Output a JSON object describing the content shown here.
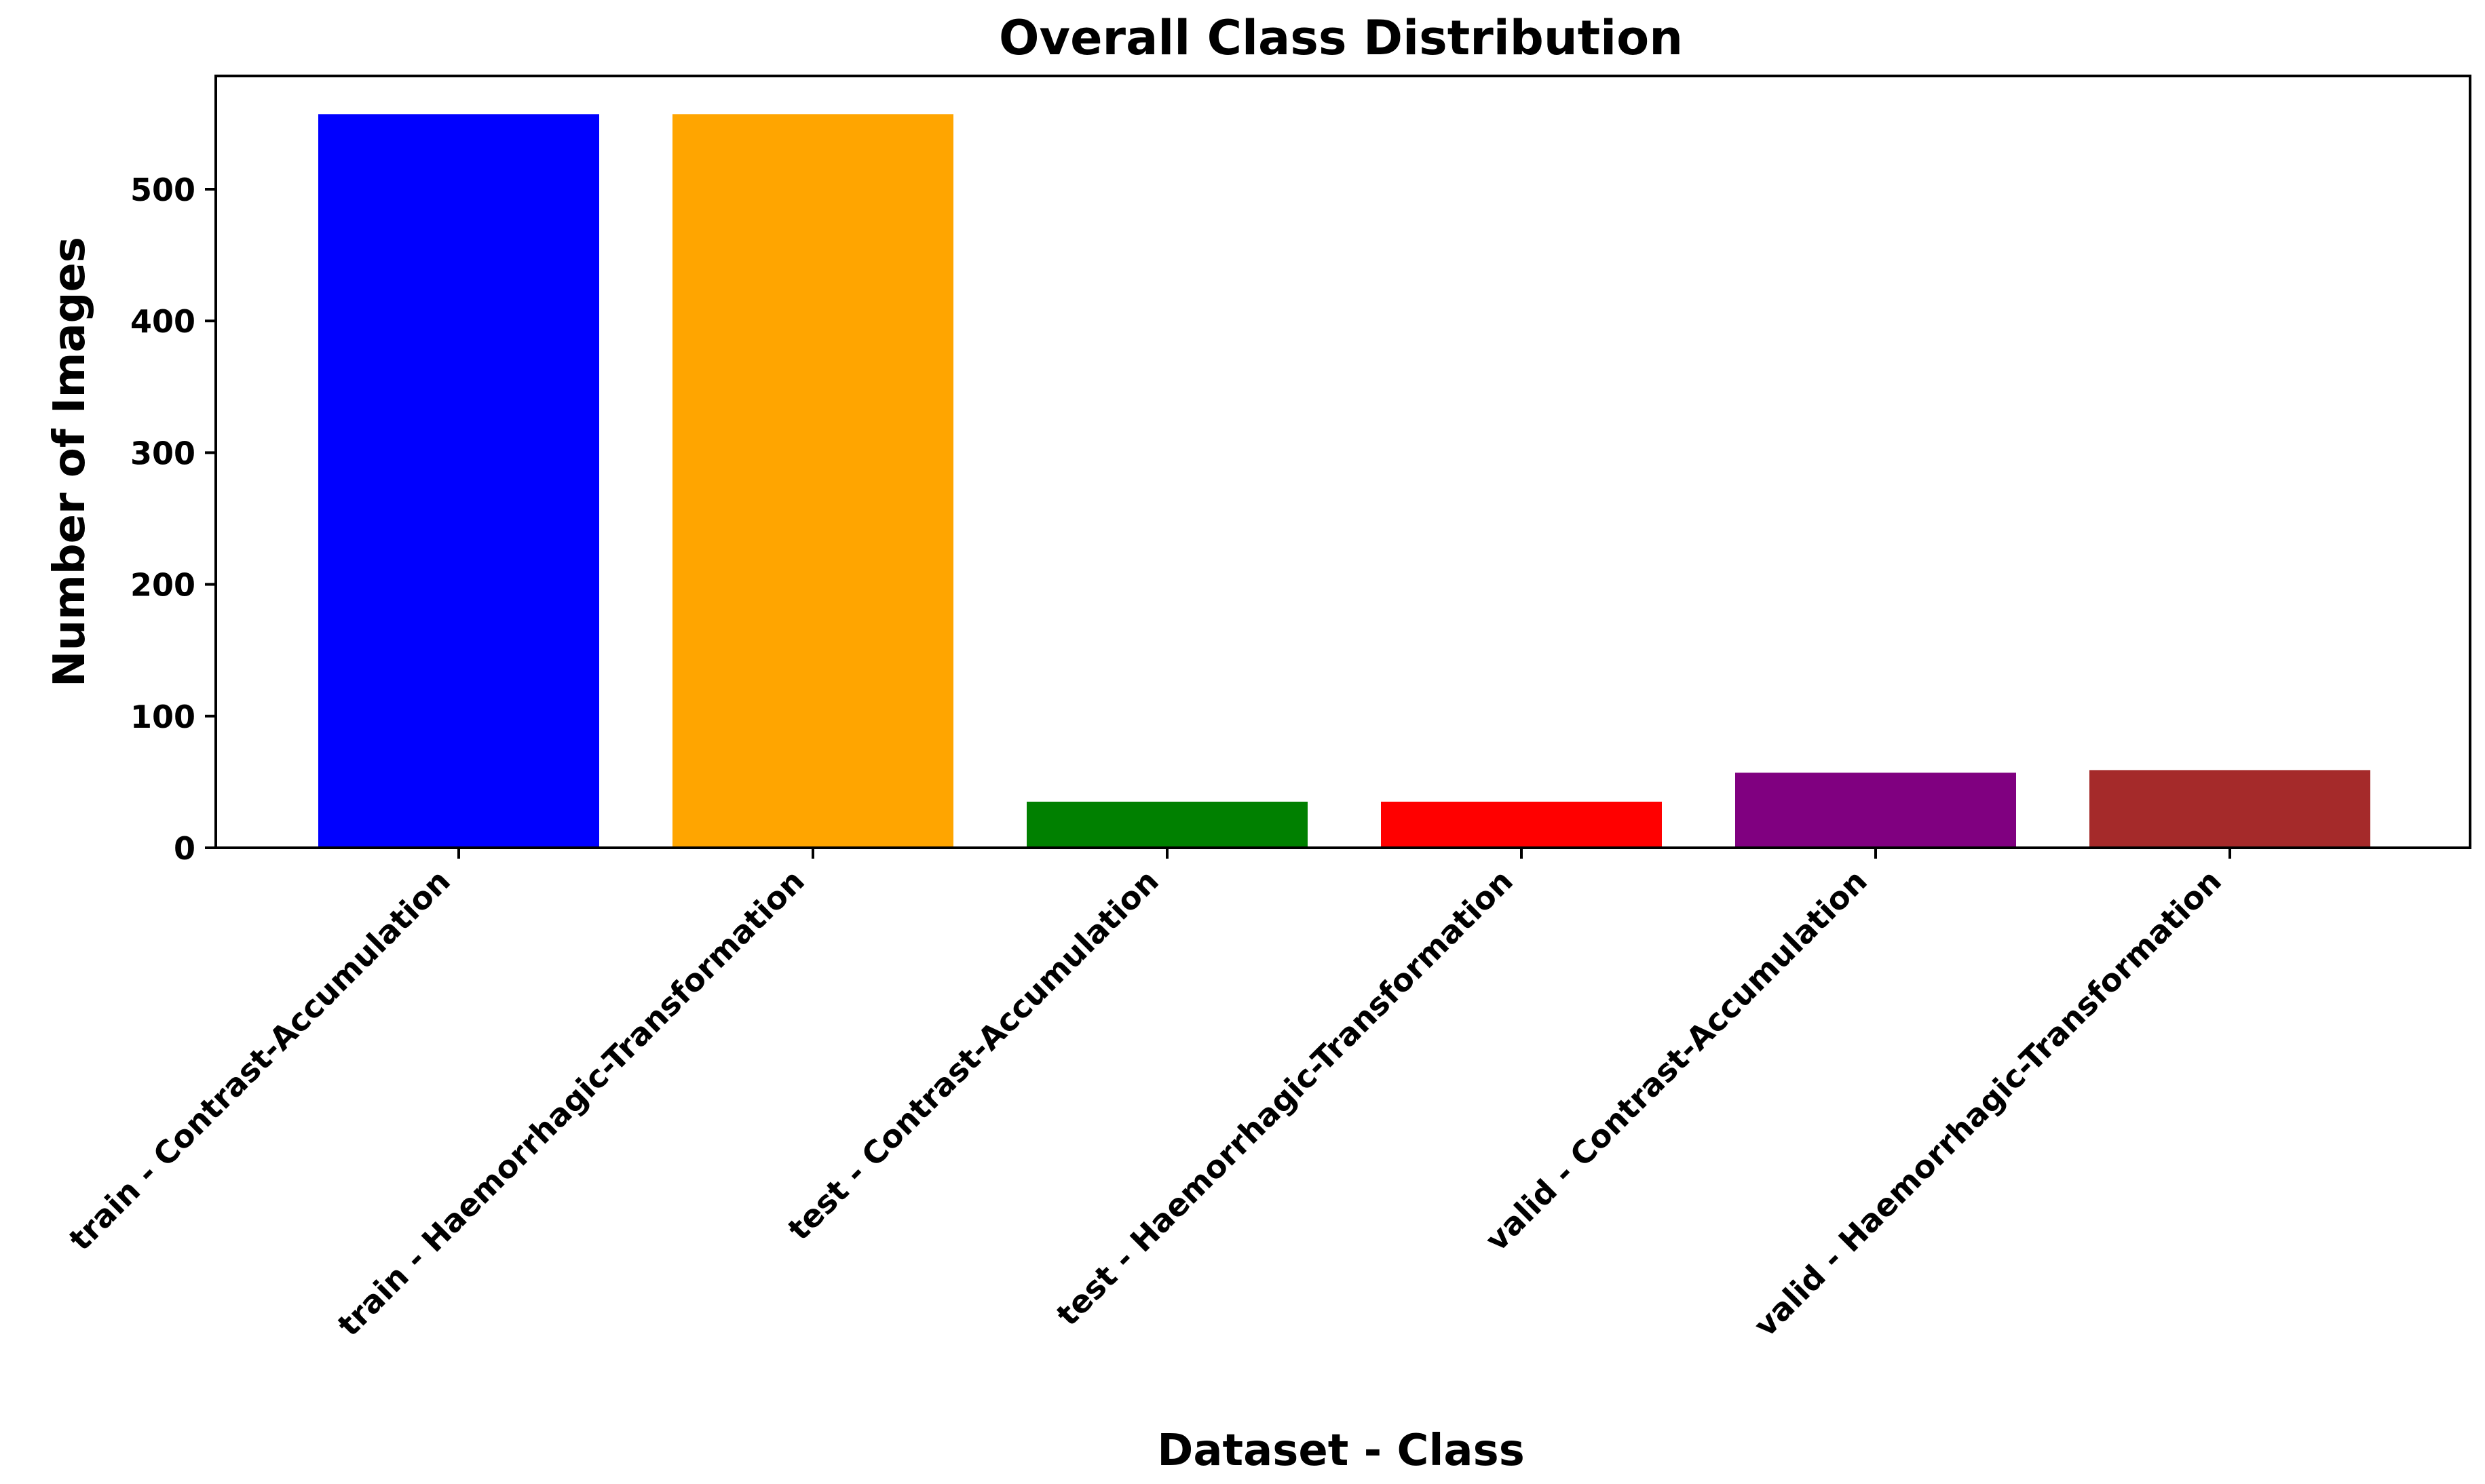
{
  "chart_data": {
    "type": "bar",
    "title": "Overall Class Distribution",
    "xlabel": "Dataset - Class",
    "ylabel": "Number of Images",
    "categories": [
      "train - Contrast-Accumulation",
      "train - Haemorrhagic-Transformation",
      "test - Contrast-Accumulation",
      "test - Haemorrhagic-Transformation",
      "valid - Contrast-Accumulation",
      "valid - Haemorrhagic-Transformation"
    ],
    "values": [
      557,
      557,
      35,
      35,
      57,
      59
    ],
    "colors": [
      "#0000ff",
      "#ffa500",
      "#008000",
      "#ff0000",
      "#800080",
      "#a52a2a"
    ],
    "ylim": [
      0,
      586
    ],
    "yticks": [
      0,
      100,
      200,
      300,
      400,
      500
    ],
    "grid": false,
    "legend": "none"
  }
}
